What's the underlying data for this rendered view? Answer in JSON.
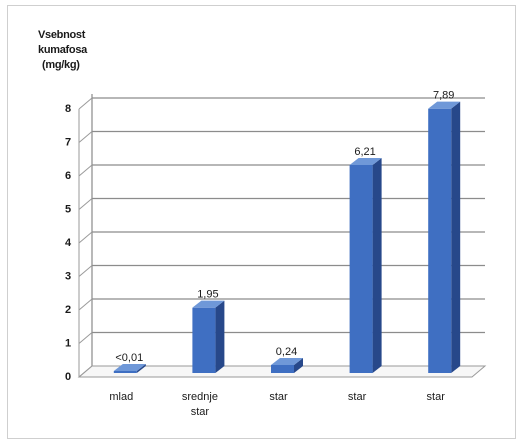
{
  "chart_data": {
    "type": "bar",
    "ylabel_lines": [
      "Vsebnost",
      "kumafosa",
      "(mg/kg)"
    ],
    "categories": [
      [
        "mlad"
      ],
      [
        "srednje",
        "star"
      ],
      [
        "star"
      ],
      [
        "star"
      ],
      [
        "star"
      ]
    ],
    "values": [
      0.01,
      1.95,
      0.24,
      6.21,
      7.89
    ],
    "data_labels": [
      "<0,01",
      "1,95",
      "0,24",
      "6,21",
      "7,89"
    ],
    "yticks": [
      "0",
      "1",
      "2",
      "3",
      "4",
      "5",
      "6",
      "7",
      "8"
    ],
    "ylim": [
      0,
      8
    ],
    "grid": true,
    "legend": "none",
    "bar_color": "#3f6fc2"
  }
}
